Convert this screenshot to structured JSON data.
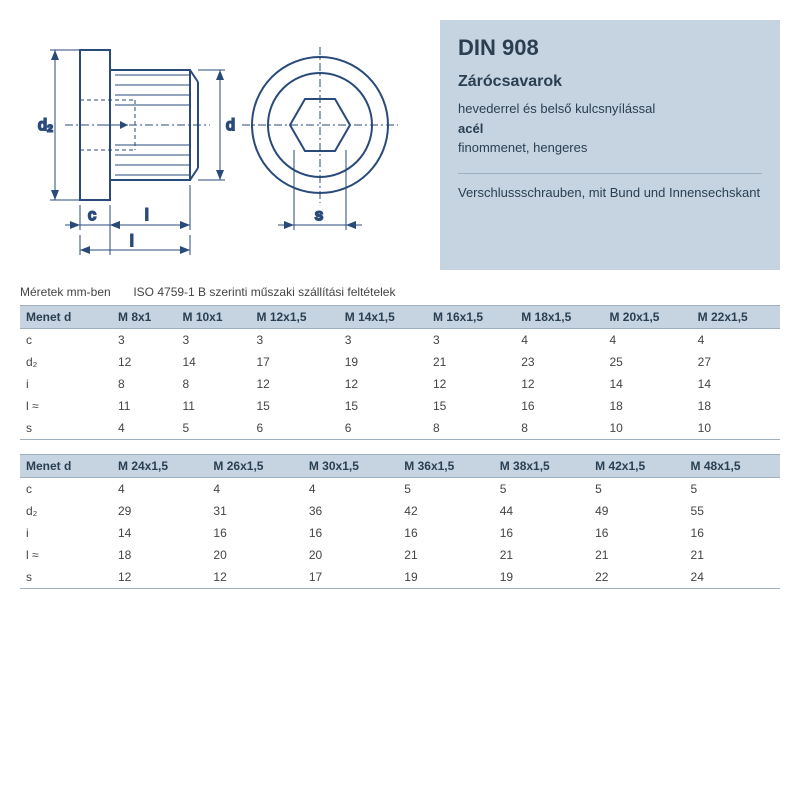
{
  "info": {
    "din": "DIN 908",
    "title": "Zárócsavarok",
    "desc_line1": "hevederrel és belső kulcsnyílással",
    "desc_bold": "acél",
    "desc_line2": "finommenet, hengeres",
    "desc2": "Verschlussschrauben, mit Bund und Innensechskant"
  },
  "meta": {
    "units": "Méretek mm-ben",
    "standard": "ISO 4759-1 B szerinti műszaki szállítási feltételek"
  },
  "table1": {
    "header_label": "Menet d",
    "columns": [
      "M 8x1",
      "M 10x1",
      "M 12x1,5",
      "M 14x1,5",
      "M 16x1,5",
      "M 18x1,5",
      "M 20x1,5",
      "M 22x1,5"
    ],
    "rows": [
      {
        "label": "c",
        "values": [
          "3",
          "3",
          "3",
          "3",
          "3",
          "4",
          "4",
          "4"
        ]
      },
      {
        "label": "d₂",
        "values": [
          "12",
          "14",
          "17",
          "19",
          "21",
          "23",
          "25",
          "27"
        ]
      },
      {
        "label": "i",
        "values": [
          "8",
          "8",
          "12",
          "12",
          "12",
          "12",
          "14",
          "14"
        ]
      },
      {
        "label": "l ≈",
        "values": [
          "11",
          "11",
          "15",
          "15",
          "15",
          "16",
          "18",
          "18"
        ]
      },
      {
        "label": "s",
        "values": [
          "4",
          "5",
          "6",
          "6",
          "8",
          "8",
          "10",
          "10"
        ]
      }
    ]
  },
  "table2": {
    "header_label": "Menet d",
    "columns": [
      "M 24x1,5",
      "M 26x1,5",
      "M 30x1,5",
      "M 36x1,5",
      "M 38x1,5",
      "M 42x1,5",
      "M 48x1,5"
    ],
    "rows": [
      {
        "label": "c",
        "values": [
          "4",
          "4",
          "4",
          "5",
          "5",
          "5",
          "5"
        ]
      },
      {
        "label": "d₂",
        "values": [
          "29",
          "31",
          "36",
          "42",
          "44",
          "49",
          "55"
        ]
      },
      {
        "label": "i",
        "values": [
          "14",
          "16",
          "16",
          "16",
          "16",
          "16",
          "16"
        ]
      },
      {
        "label": "l ≈",
        "values": [
          "18",
          "20",
          "20",
          "21",
          "21",
          "21",
          "21"
        ]
      },
      {
        "label": "s",
        "values": [
          "12",
          "12",
          "17",
          "19",
          "19",
          "22",
          "24"
        ]
      }
    ]
  },
  "diagram": {
    "labels": {
      "d2": "d₂",
      "d": "d",
      "c": "c",
      "i": "i",
      "l": "l",
      "s": "s"
    },
    "stroke": "#2a4a7a",
    "fontsize": 16
  }
}
